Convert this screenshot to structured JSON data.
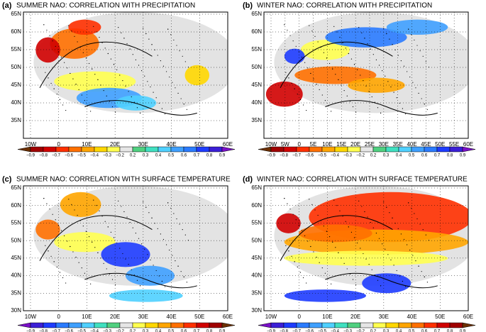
{
  "panels": [
    {
      "label": "(a)",
      "title": "SUMMER NAO: CORRELATION WITH PRECIPITATION",
      "lat_labels": [
        "65N",
        "60N",
        "55N",
        "50N",
        "45N",
        "40N",
        "35N"
      ],
      "lon_labels": [
        "10W",
        "0",
        "10E",
        "20E",
        "30E",
        "40E",
        "50E",
        "60E"
      ],
      "colorbar": {
        "labels": [
          "−0.9",
          "−0.8",
          "−0.7",
          "−0.6",
          "−0.5",
          "−0.4",
          "−0.3",
          "−0.2",
          "0.2",
          "0.3",
          "0.4",
          "0.5",
          "0.6",
          "0.7",
          "0.8",
          "0.9"
        ],
        "colors": [
          "#6b2f00",
          "#a00000",
          "#d00000",
          "#ff3000",
          "#ff7000",
          "#ffa500",
          "#ffd700",
          "#ffff50",
          "#e6e6e6",
          "#50d080",
          "#40e0c0",
          "#4fd0ff",
          "#3fa0ff",
          "#2a7bff",
          "#1e3cff",
          "#3b1fd6",
          "#7a10c8"
        ]
      }
    },
    {
      "label": "(b)",
      "title": "WINTER NAO: CORRELATION WITH PRECIPITATION",
      "lat_labels": [
        "65N",
        "60N",
        "55N",
        "50N",
        "45N",
        "40N",
        "35N"
      ],
      "lon_labels": [
        "10W",
        "5W",
        "0",
        "5E",
        "10E",
        "15E",
        "20E",
        "25E",
        "30E",
        "35E",
        "40E",
        "45E",
        "50E",
        "55E",
        "60E"
      ],
      "colorbar": {
        "labels": [
          "−0.9",
          "−0.8",
          "−0.7",
          "−0.6",
          "−0.5",
          "−0.4",
          "−0.3",
          "−0.2",
          "0.2",
          "0.3",
          "0.4",
          "0.5",
          "0.6",
          "0.7",
          "0.8",
          "0.9"
        ],
        "colors": [
          "#6b2f00",
          "#a00000",
          "#d00000",
          "#ff3000",
          "#ff7000",
          "#ffa500",
          "#ffd700",
          "#ffff50",
          "#e6e6e6",
          "#50d080",
          "#40e0c0",
          "#4fd0ff",
          "#3fa0ff",
          "#2a7bff",
          "#1e3cff",
          "#3b1fd6",
          "#7a10c8"
        ]
      }
    },
    {
      "label": "(c)",
      "title": "SUMMER NAO: CORRELATION WITH SURFACE TEMPERATURE",
      "lat_labels": [
        "65N",
        "60N",
        "55N",
        "50N",
        "45N",
        "40N",
        "35N",
        "30N"
      ],
      "lon_labels": [
        "10W",
        "0",
        "10E",
        "20E",
        "30E",
        "40E",
        "50E",
        "60E"
      ],
      "colorbar": {
        "labels": [
          "−0.9",
          "−0.8",
          "−0.7",
          "−0.6",
          "−0.5",
          "−0.4",
          "−0.3",
          "−0.2",
          "0.2",
          "0.3",
          "0.4",
          "0.5",
          "0.6",
          "0.7",
          "0.8",
          "0.9"
        ],
        "colors": [
          "#7a10c8",
          "#3b1fd6",
          "#1e3cff",
          "#2a7bff",
          "#3fa0ff",
          "#4fd0ff",
          "#40e0c0",
          "#50d080",
          "#e6e6e6",
          "#ffff50",
          "#ffd700",
          "#ffa500",
          "#ff7000",
          "#ff3000",
          "#d00000",
          "#a00000",
          "#6b2f00"
        ]
      }
    },
    {
      "label": "(d)",
      "title": "WINTER NAO: CORRELATION WITH SURFACE TEMPERATURE",
      "lat_labels": [
        "65N",
        "60N",
        "55N",
        "50N",
        "45N",
        "40N",
        "35N",
        "30N"
      ],
      "lon_labels": [
        "10W",
        "0",
        "10E",
        "20E",
        "30E",
        "40E",
        "50E",
        "60E"
      ],
      "colorbar": {
        "labels": [
          "−0.9",
          "−0.8",
          "−0.7",
          "−0.6",
          "−0.5",
          "−0.4",
          "−0.3",
          "−0.2",
          "0.2",
          "0.3",
          "0.4",
          "0.5",
          "0.6",
          "0.7",
          "0.8",
          "0.9"
        ],
        "colors": [
          "#7a10c8",
          "#3b1fd6",
          "#1e3cff",
          "#2a7bff",
          "#3fa0ff",
          "#4fd0ff",
          "#40e0c0",
          "#50d080",
          "#e6e6e6",
          "#ffff50",
          "#ffd700",
          "#ffa500",
          "#ff7000",
          "#ff3000",
          "#d00000",
          "#a00000",
          "#6b2f00"
        ]
      }
    }
  ]
}
